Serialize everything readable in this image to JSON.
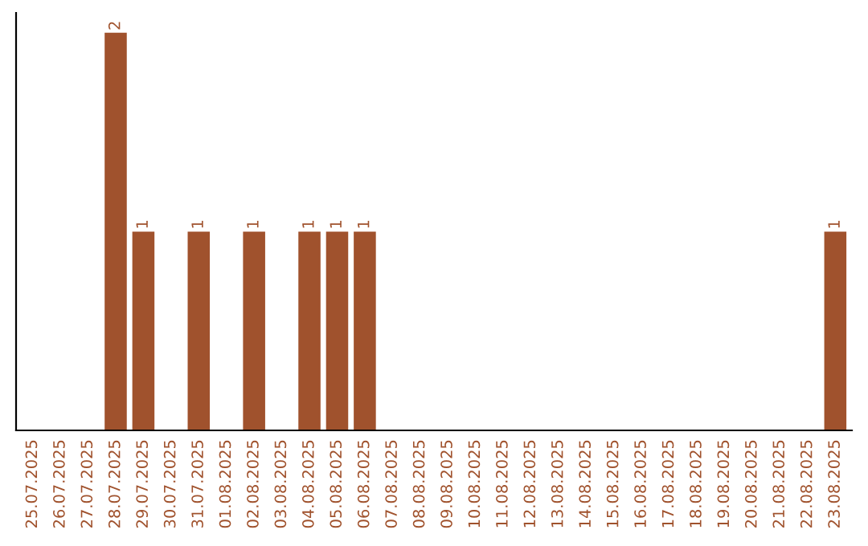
{
  "chart_data": {
    "type": "bar",
    "categories": [
      "25.07.2025",
      "26.07.2025",
      "27.07.2025",
      "28.07.2025",
      "29.07.2025",
      "30.07.2025",
      "31.07.2025",
      "01.08.2025",
      "02.08.2025",
      "03.08.2025",
      "04.08.2025",
      "05.08.2025",
      "06.08.2025",
      "07.08.2025",
      "08.08.2025",
      "09.08.2025",
      "10.08.2025",
      "11.08.2025",
      "12.08.2025",
      "13.08.2025",
      "14.08.2025",
      "15.08.2025",
      "16.08.2025",
      "17.08.2025",
      "18.08.2025",
      "19.08.2025",
      "20.08.2025",
      "21.08.2025",
      "22.08.2025",
      "23.08.2025"
    ],
    "values": [
      0,
      0,
      0,
      2,
      1,
      0,
      1,
      0,
      1,
      0,
      1,
      1,
      1,
      0,
      0,
      0,
      0,
      0,
      0,
      0,
      0,
      0,
      0,
      0,
      0,
      0,
      0,
      0,
      0,
      1
    ],
    "value_labels": [
      null,
      null,
      null,
      "2",
      "1",
      null,
      "1",
      null,
      "1",
      null,
      "1",
      "1",
      "1",
      null,
      null,
      null,
      null,
      null,
      null,
      null,
      null,
      null,
      null,
      null,
      null,
      null,
      null,
      null,
      null,
      "1"
    ],
    "color": "#a0522d",
    "ylim": [
      0,
      2.1
    ],
    "grid": false,
    "legend": false
  }
}
